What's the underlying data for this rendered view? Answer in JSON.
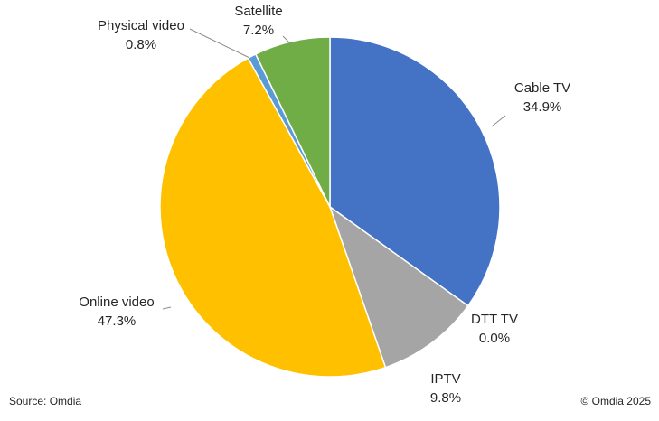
{
  "chart_data": {
    "type": "pie",
    "title": "",
    "start_angle_deg": 0,
    "direction": "clockwise",
    "slices": [
      {
        "name": "Cable TV",
        "value": 34.9,
        "label": "34.9%",
        "color": "#4472C4"
      },
      {
        "name": "DTT TV",
        "value": 0.0,
        "label": "0.0%",
        "color": "#ED7D31"
      },
      {
        "name": "IPTV",
        "value": 9.8,
        "label": "9.8%",
        "color": "#A5A5A5"
      },
      {
        "name": "Online video",
        "value": 47.3,
        "label": "47.3%",
        "color": "#FFC000"
      },
      {
        "name": "Physical video",
        "value": 0.8,
        "label": "0.8%",
        "color": "#5B9BD5"
      },
      {
        "name": "Satellite",
        "value": 7.2,
        "label": "7.2%",
        "color": "#70AD47"
      }
    ],
    "legend": "none"
  },
  "footer": {
    "source": "Source: Omdia",
    "copyright": "© Omdia 2025"
  }
}
